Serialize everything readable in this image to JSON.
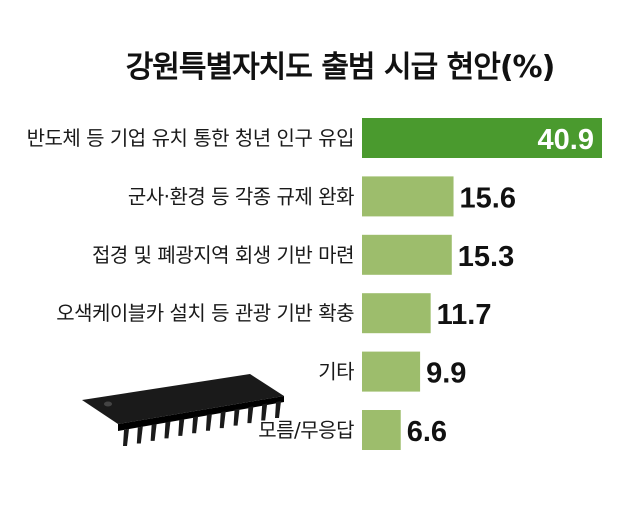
{
  "title": "강원특별자치도 출범 시급 현안(%)",
  "colors": {
    "highlight_bar": "#4a9a2e",
    "bar": "#9dbd6c",
    "chip": "#1a1a1a"
  },
  "chart_data": {
    "type": "bar",
    "orientation": "horizontal",
    "title": "강원특별자치도 출범 시급 현안(%)",
    "categories": [
      "반도체 등 기업 유치 통한 청년 인구 유입",
      "군사·환경 등 각종 규제 완화",
      "접경 및 폐광지역 회생 기반 마련",
      "오색케이블카 설치 등 관광 기반 확충",
      "기타",
      "모름/무응답"
    ],
    "values": [
      40.9,
      15.6,
      15.3,
      11.7,
      9.9,
      6.6
    ],
    "value_labels": [
      "40.9",
      "15.6",
      "15.3",
      "11.7",
      "9.9",
      "6.6"
    ],
    "highlight_index": 0,
    "xlim": [
      0,
      40.9
    ],
    "grid": false,
    "legend": "none"
  },
  "decoration": {
    "icon": "semiconductor-chip-icon"
  }
}
